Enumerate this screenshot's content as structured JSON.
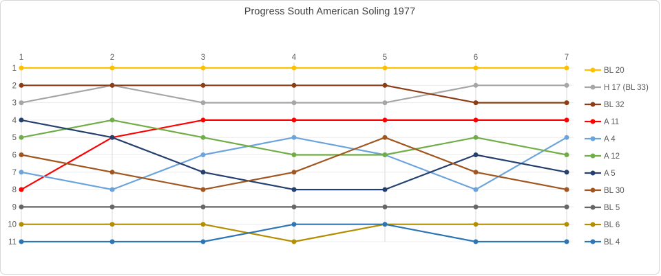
{
  "chart_data": {
    "type": "line",
    "title": "Progress South American Soling 1977",
    "x": [
      1,
      2,
      3,
      4,
      5,
      6,
      7
    ],
    "xlabel": "",
    "ylabel": "",
    "x_axis": {
      "position": "top",
      "ticks": [
        "1",
        "2",
        "3",
        "4",
        "5",
        "6",
        "7"
      ]
    },
    "y_axis": {
      "position": "left",
      "inverted": true,
      "range": [
        1,
        11
      ],
      "ticks": [
        "1",
        "2",
        "3",
        "4",
        "5",
        "6",
        "7",
        "8",
        "9",
        "10",
        "11"
      ]
    },
    "grid": true,
    "legend_position": "right",
    "series": [
      {
        "name": "BL 20",
        "color": "#FFC000",
        "values": [
          1,
          1,
          1,
          1,
          1,
          1,
          1
        ]
      },
      {
        "name": "H 17 (BL 33)",
        "color": "#A6A6A6",
        "values": [
          3,
          2,
          3,
          3,
          3,
          2,
          2
        ]
      },
      {
        "name": "BL 32",
        "color": "#8C3D15",
        "values": [
          2,
          2,
          2,
          2,
          2,
          3,
          3
        ]
      },
      {
        "name": "A 11",
        "color": "#FF0000",
        "values": [
          8,
          5,
          4,
          4,
          4,
          4,
          4
        ]
      },
      {
        "name": "A 4",
        "color": "#6BA3DC",
        "values": [
          7,
          8,
          6,
          5,
          6,
          8,
          5
        ]
      },
      {
        "name": "A 12",
        "color": "#70AD47",
        "values": [
          5,
          4,
          5,
          6,
          6,
          5,
          6
        ]
      },
      {
        "name": "A 5",
        "color": "#24406E",
        "values": [
          4,
          5,
          7,
          8,
          8,
          6,
          7
        ]
      },
      {
        "name": "BL 30",
        "color": "#A0561E",
        "values": [
          6,
          7,
          8,
          7,
          5,
          7,
          8
        ]
      },
      {
        "name": "BL 5",
        "color": "#666666",
        "values": [
          9,
          9,
          9,
          9,
          9,
          9,
          9
        ]
      },
      {
        "name": "BL 6",
        "color": "#B28E00",
        "values": [
          10,
          10,
          10,
          11,
          10,
          10,
          10
        ]
      },
      {
        "name": "BL 4",
        "color": "#2E75B6",
        "values": [
          11,
          11,
          11,
          10,
          10,
          11,
          11
        ]
      }
    ]
  },
  "style": {
    "grid_h_color": "#ECECEC",
    "grid_v_color": "#D9D9D9",
    "tick_label_color": "#595959",
    "legend_label_color": "#595959",
    "title_color": "#404040"
  }
}
